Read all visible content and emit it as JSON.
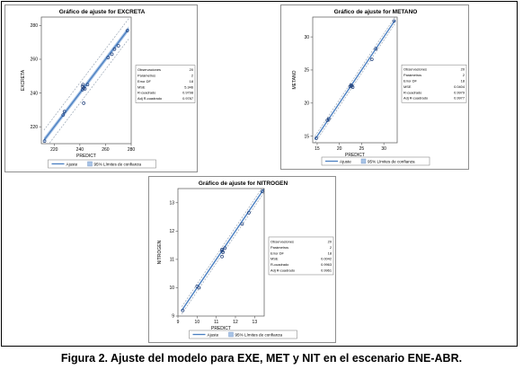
{
  "caption": "Figura 2. Ajuste del modelo para EXE, MET y NIT en el escenario ENE-ABR.",
  "colors": {
    "fit_line": "#4a7fc1",
    "band": "#a9c4e6",
    "points": "#1f3f7a",
    "limit_line": "#9aa6b4"
  },
  "legend": {
    "fit_label": "Ajuste",
    "band_label": "95% Límites de confianza"
  },
  "stats_labels": [
    "Observaciones",
    "Parámetros",
    "Error DF",
    "MSE",
    "R-cuadrado",
    "Adj R-cuadrado"
  ],
  "chart_data": [
    {
      "type": "scatter",
      "title": "Gráfico de ajuste for EXCRETA",
      "xlabel": "PREDICT",
      "ylabel": "EXCRETA",
      "xlim": [
        210,
        280
      ],
      "ylim": [
        210,
        285
      ],
      "xticks": [
        220,
        240,
        260,
        280
      ],
      "yticks": [
        220,
        240,
        260,
        280
      ],
      "fit": {
        "x": [
          212,
          278
        ],
        "y": [
          212,
          278
        ]
      },
      "band_halfwidth": 1.5,
      "limit_halfwidth": 6,
      "points": {
        "x": [
          212.5,
          227,
          228,
          242,
          242,
          242.5,
          243,
          244,
          246,
          262,
          265,
          267,
          270,
          277,
          243
        ],
        "y": [
          211.5,
          227,
          229,
          242,
          244,
          245,
          243,
          242.5,
          245,
          261,
          263,
          266,
          268,
          277,
          234
        ]
      },
      "stats": [
        "20",
        "2",
        "18",
        "5.346",
        "0.9798",
        "0.9787"
      ]
    },
    {
      "type": "scatter",
      "title": "Gráfico de ajuste for METANO",
      "xlabel": "PREDICT",
      "ylabel": "METANO",
      "xlim": [
        14,
        33
      ],
      "ylim": [
        14,
        33
      ],
      "xticks": [
        15,
        20,
        25,
        30
      ],
      "yticks": [
        15,
        20,
        25,
        30
      ],
      "fit": {
        "x": [
          14.5,
          32.5
        ],
        "y": [
          14.5,
          32.5
        ]
      },
      "band_halfwidth": 0.15,
      "limit_halfwidth": 0.5,
      "points": {
        "x": [
          14.8,
          17.3,
          17.6,
          22.4,
          22.6,
          22.8,
          23.0,
          27.3,
          28.2,
          32.3
        ],
        "y": [
          14.7,
          17.4,
          17.6,
          22.5,
          22.7,
          22.6,
          22.4,
          26.6,
          28.2,
          32.4
        ]
      },
      "stats": [
        "20",
        "2",
        "18",
        "0.0404",
        "0.9979",
        "0.9977"
      ]
    },
    {
      "type": "scatter",
      "title": "Gráfico de ajuste for NITROGEN",
      "xlabel": "PREDICT",
      "ylabel": "NITROGEN",
      "xlim": [
        9,
        13.5
      ],
      "ylim": [
        9,
        13.5
      ],
      "xticks": [
        9,
        10,
        11,
        12,
        13
      ],
      "yticks": [
        9,
        10,
        11,
        12,
        13
      ],
      "fit": {
        "x": [
          9.2,
          13.5
        ],
        "y": [
          9.2,
          13.5
        ]
      },
      "band_halfwidth": 0.04,
      "limit_halfwidth": 0.13,
      "points": {
        "x": [
          9.25,
          10.0,
          10.1,
          11.3,
          11.3,
          11.35,
          11.45,
          12.35,
          12.7,
          13.4,
          11.3
        ],
        "y": [
          9.2,
          10.05,
          10.0,
          11.3,
          11.35,
          11.25,
          11.4,
          12.25,
          12.65,
          13.4,
          11.1
        ]
      },
      "stats": [
        "20",
        "2",
        "18",
        "0.0042",
        "0.9963",
        "0.9961"
      ]
    }
  ]
}
